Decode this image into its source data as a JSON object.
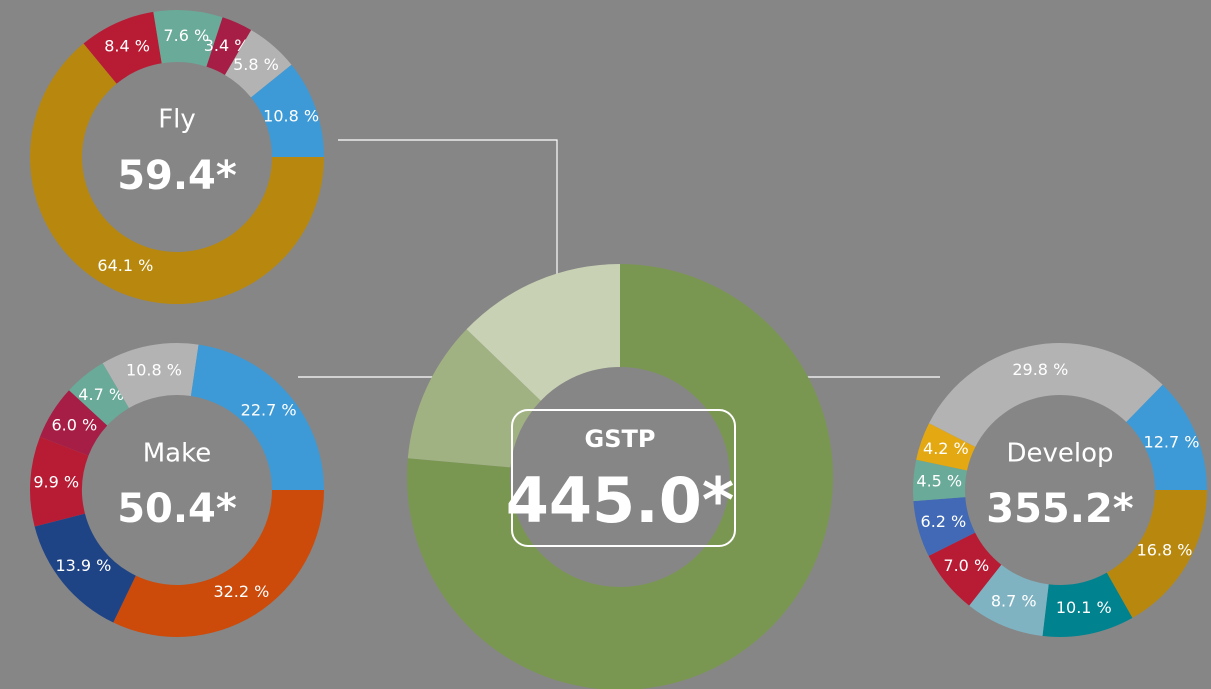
{
  "chart_data": [
    {
      "type": "donut",
      "title": "Fly",
      "total": "59.4*",
      "values": [
        64.1,
        8.4,
        7.6,
        3.4,
        5.8,
        10.8
      ],
      "value_labels": [
        "64.1 %",
        "8.4 %",
        "7.6 %",
        "3.4 %",
        "5.8 %",
        "10.8 %"
      ],
      "colors": [
        "#b8880e",
        "#b81c35",
        "#6aaa98",
        "#a61e45",
        "#b3b3b3",
        "#3d9ad6"
      ]
    },
    {
      "type": "donut",
      "title": "Make",
      "total": "50.4*",
      "values": [
        32.2,
        13.9,
        9.9,
        6.0,
        4.7,
        10.8,
        22.7
      ],
      "value_labels": [
        "32.2 %",
        "13.9 %",
        "9.9 %",
        "6.0 %",
        "4.7 %",
        "10.8 %",
        "22.7 %"
      ],
      "colors": [
        "#cc4a0a",
        "#1f4486",
        "#b81c35",
        "#a61e45",
        "#6aaa98",
        "#b3b3b3",
        "#3d9ad6"
      ]
    },
    {
      "type": "donut",
      "title": "Develop",
      "total": "355.2*",
      "values": [
        16.8,
        10.1,
        8.7,
        7.0,
        6.2,
        4.5,
        4.2,
        29.8,
        12.7
      ],
      "value_labels": [
        "16.8 %",
        "10.1 %",
        "8.7 %",
        "7.0 %",
        "6.2 %",
        "4.5 %",
        "4.2 %",
        "29.8 %",
        "12.7 %"
      ],
      "colors": [
        "#b8880e",
        "#00838f",
        "#80b3c2",
        "#b81c35",
        "#4169b5",
        "#6aaa98",
        "#e3a812",
        "#b3b3b3",
        "#3d9ad6"
      ]
    },
    {
      "type": "donut",
      "title": "GSTP",
      "total": "445.0*",
      "values": [
        76.4,
        10.8,
        12.8
      ],
      "colors": [
        "#7a9752",
        "#a1b282",
        "#c8d1b4"
      ]
    }
  ]
}
